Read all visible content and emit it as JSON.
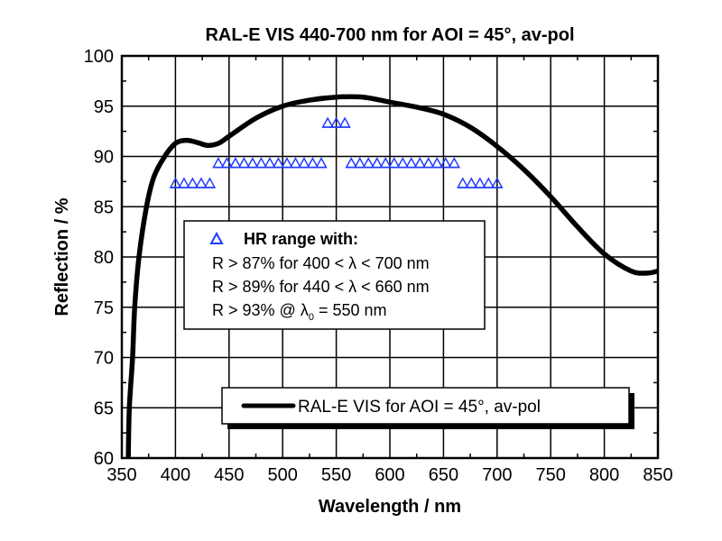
{
  "chart_data": {
    "type": "line",
    "title": "RAL-E VIS 440-700 nm for AOI = 45°, av-pol",
    "xlabel": "Wavelength / nm",
    "ylabel": "Reflection / %",
    "xlim": [
      350,
      850
    ],
    "ylim": [
      60,
      100
    ],
    "xticks": [
      350,
      400,
      450,
      500,
      550,
      600,
      650,
      700,
      750,
      800,
      850
    ],
    "yticks": [
      60,
      65,
      70,
      75,
      80,
      85,
      90,
      95,
      100
    ],
    "grid": true,
    "series": [
      {
        "name": "RAL-E VIS for AOI = 45°, av-pol",
        "color": "#000000",
        "x": [
          356,
          357,
          360,
          362,
          366,
          373,
          380,
          390,
          400,
          410,
          420,
          430,
          440,
          450,
          475,
          500,
          525,
          550,
          575,
          600,
          625,
          650,
          675,
          700,
          725,
          750,
          775,
          800,
          825,
          840,
          850
        ],
        "y": [
          60,
          65,
          70,
          75,
          80,
          85,
          88,
          90,
          91.3,
          91.6,
          91.4,
          91.1,
          91.3,
          92.0,
          93.8,
          95.0,
          95.6,
          95.9,
          95.9,
          95.4,
          94.9,
          94.2,
          92.9,
          91.0,
          88.7,
          86.0,
          83.0,
          80.3,
          78.6,
          78.4,
          78.6
        ]
      },
      {
        "name": "HR range",
        "type": "scatter",
        "marker": "open-triangle",
        "color": "#1f3cff",
        "points": [
          {
            "x": [
              400,
              408,
              416,
              424,
              432
            ],
            "y": 87
          },
          {
            "x": [
              440,
              448,
              456,
              464,
              472,
              480,
              488,
              496,
              504,
              512,
              520,
              528,
              536
            ],
            "y": 89
          },
          {
            "x": [
              542,
              550,
              558
            ],
            "y": 93
          },
          {
            "x": [
              564,
              572,
              580,
              588,
              596,
              604,
              612,
              620,
              628,
              636,
              644,
              652,
              660
            ],
            "y": 89
          },
          {
            "x": [
              668,
              676,
              684,
              692,
              700
            ],
            "y": 87
          }
        ]
      }
    ],
    "annotation": {
      "heading": "HR range with:",
      "lines": [
        "R > 87% for 400 < λ < 700 nm",
        "R > 89% for 440 < λ < 660 nm"
      ],
      "line3_prefix": "R > 93% @ λ",
      "line3_sub": "0",
      "line3_suffix": " = 550 nm"
    },
    "legend": {
      "label": "RAL-E VIS for AOI = 45°, av-pol",
      "placement": "bottom-center"
    }
  }
}
